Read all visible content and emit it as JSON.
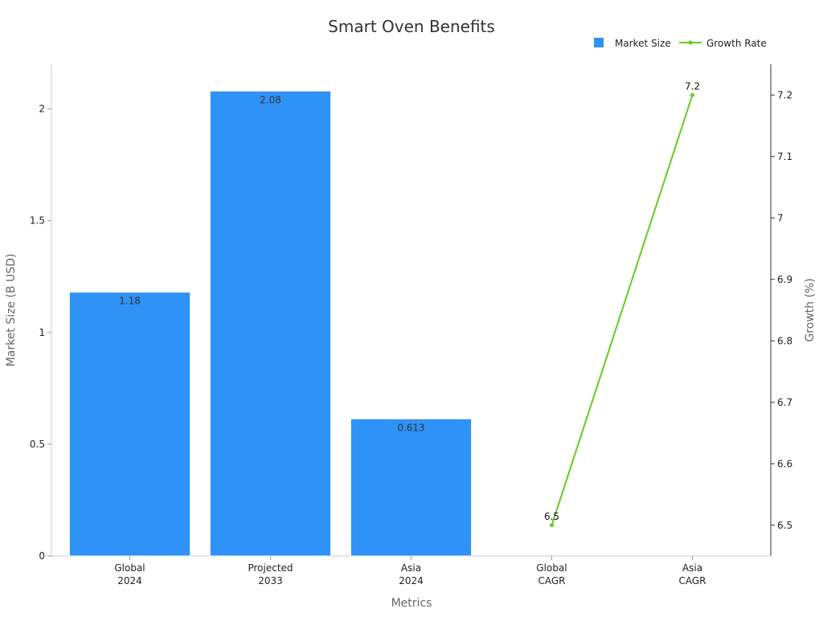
{
  "chart_data": {
    "type": "bar+line",
    "title": "Smart Oven Benefits",
    "categories": [
      [
        "Global",
        "2024"
      ],
      [
        "Projected",
        "2033"
      ],
      [
        "Asia",
        "2024"
      ],
      [
        "Global",
        "CAGR"
      ],
      [
        "Asia",
        "CAGR"
      ]
    ],
    "xlabel": "Metrics",
    "ylabel_left": "Market Size (B USD)",
    "ylabel_right": "Growth (%)",
    "ylim_left": [
      0,
      2.2
    ],
    "ylim_right": [
      6.45,
      7.25
    ],
    "yticks_left": [
      "0",
      "0.5",
      "1",
      "1.5",
      "2"
    ],
    "yticks_right": [
      "6.5",
      "6.6",
      "6.7",
      "6.8",
      "6.9",
      "7",
      "7.1",
      "7.2"
    ],
    "legend_position": "top-right",
    "series": [
      {
        "name": "Market Size",
        "type": "bar",
        "axis": "left",
        "color": "#2f92f7",
        "values": [
          1.18,
          2.08,
          0.613,
          null,
          null
        ],
        "labels": [
          "1.18",
          "2.08",
          "0.613",
          "",
          ""
        ]
      },
      {
        "name": "Growth Rate",
        "type": "line",
        "axis": "right",
        "color": "#66cc22",
        "values": [
          null,
          null,
          null,
          6.5,
          7.2
        ],
        "labels": [
          "",
          "",
          "",
          "6.5",
          "7.2"
        ]
      }
    ]
  }
}
